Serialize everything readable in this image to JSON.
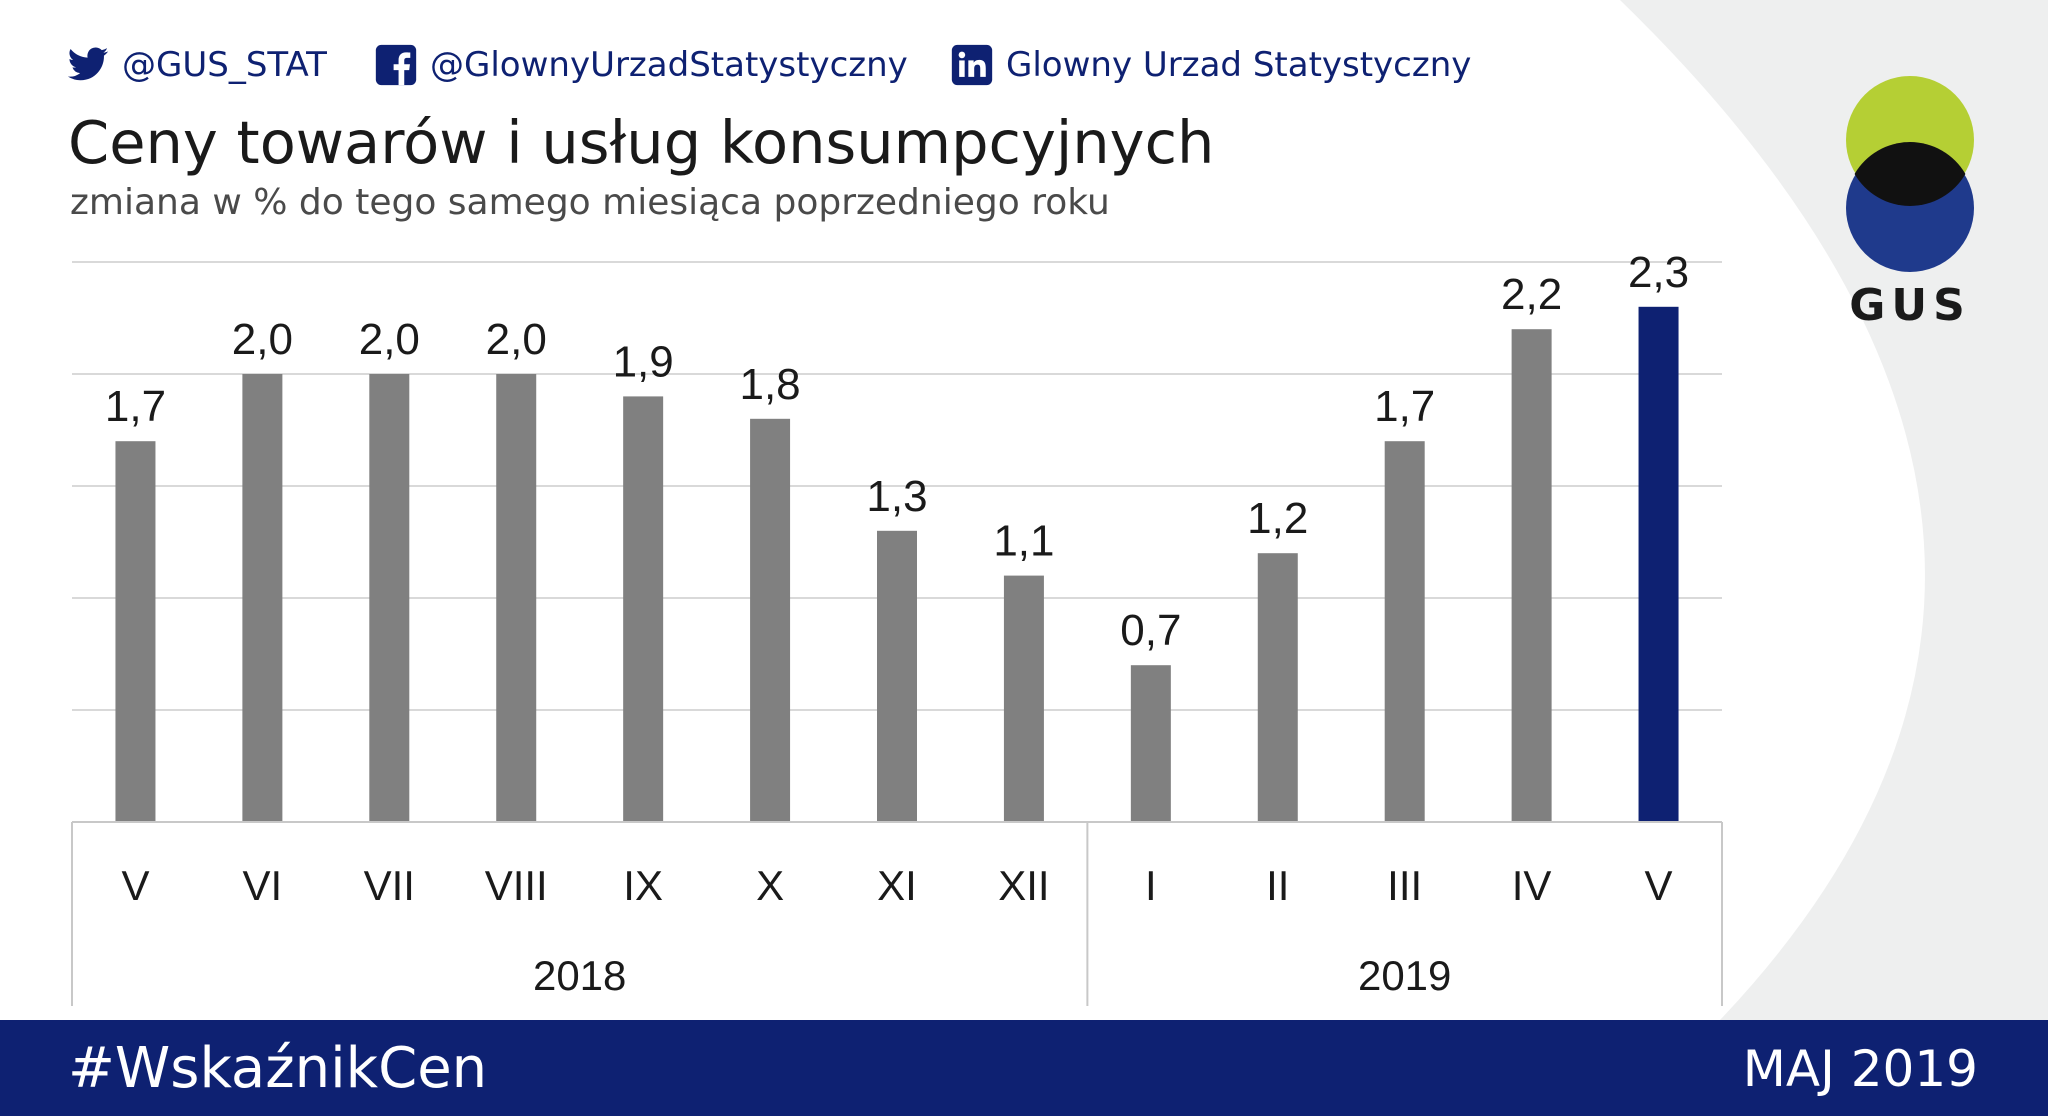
{
  "social": {
    "twitter": "@GUS_STAT",
    "facebook": "@GlownyUrzadStatystyczny",
    "linkedin": "Glowny Urzad Statystyczny"
  },
  "logo": {
    "text": "GUS"
  },
  "footer": {
    "hashtag": "#WskaźnikCen",
    "date": "MAJ 2019"
  },
  "colors": {
    "bar_default": "#808080",
    "bar_highlight": "#0e2172",
    "brand_navy": "#0e2172",
    "logo_green": "#b5cf34",
    "logo_blue": "#1f3a8c"
  },
  "chart_data": {
    "type": "bar",
    "title": "Ceny towarów i usług konsumpcyjnych",
    "subtitle": "zmiana w % do tego samego miesiąca poprzedniego roku",
    "categories": [
      "V",
      "VI",
      "VII",
      "VIII",
      "IX",
      "X",
      "XI",
      "XII",
      "I",
      "II",
      "III",
      "IV",
      "V"
    ],
    "values": [
      1.7,
      2.0,
      2.0,
      2.0,
      1.9,
      1.8,
      1.3,
      1.1,
      0.7,
      1.2,
      1.7,
      2.2,
      2.3
    ],
    "value_labels": [
      "1,7",
      "2,0",
      "2,0",
      "2,0",
      "1,9",
      "1,8",
      "1,3",
      "1,1",
      "0,7",
      "1,2",
      "1,7",
      "2,2",
      "2,3"
    ],
    "highlight_index": 12,
    "groups": [
      {
        "label": "2018",
        "count": 8
      },
      {
        "label": "2019",
        "count": 5
      }
    ],
    "ylim": [
      0,
      2.5
    ],
    "grid": true,
    "legend": "none"
  }
}
